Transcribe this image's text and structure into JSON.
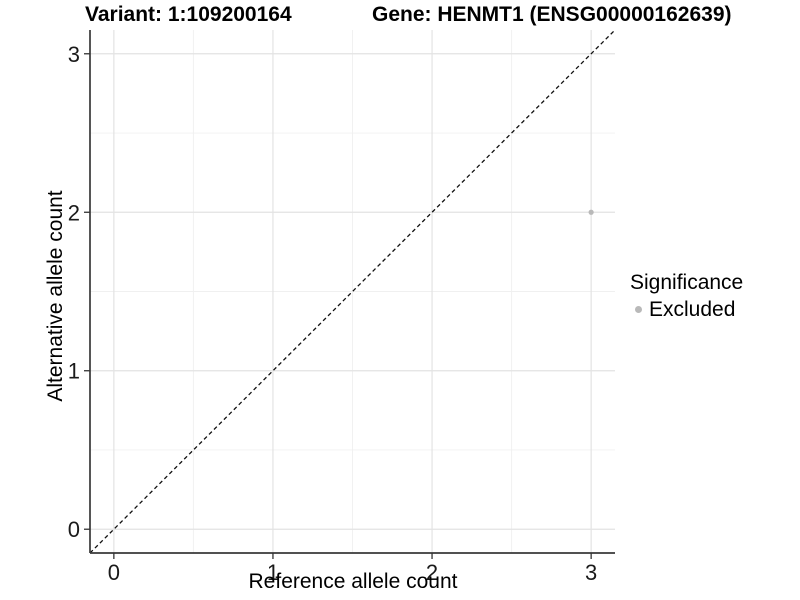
{
  "header": {
    "variant_title": "Variant: 1:109200164",
    "gene_title": "Gene: HENMT1 (ENSG00000162639)"
  },
  "legend": {
    "title": "Significance",
    "items": [
      {
        "label": "Excluded",
        "color": "#b9b9b9"
      }
    ]
  },
  "chart_data": {
    "type": "scatter",
    "title": "Variant: 1:109200164    Gene: HENMT1 (ENSG00000162639)",
    "xlabel": "Reference allele count",
    "ylabel": "Alternative allele count",
    "xlim": [
      -0.15,
      3.15
    ],
    "ylim": [
      -0.15,
      3.15
    ],
    "x_ticks": [
      0,
      1,
      2,
      3
    ],
    "y_ticks": [
      0,
      1,
      2,
      3
    ],
    "x_minor_ticks": [
      0.5,
      1.5,
      2.5
    ],
    "y_minor_ticks": [
      0.5,
      1.5,
      2.5
    ],
    "grid": "major and minor, light grey on white",
    "legend_position": "right",
    "series": [
      {
        "name": "Excluded",
        "color": "#b9b9b9",
        "points": [
          {
            "x": 3,
            "y": 2
          }
        ]
      }
    ],
    "reference_line": {
      "type": "identity y=x",
      "style": "dashed",
      "color": "#111111"
    }
  },
  "colors": {
    "background": "#ffffff",
    "grid_major": "#e3e3e3",
    "grid_minor": "#f0f0f0",
    "axis_line": "#383838",
    "tick_label": "#1a1a1a",
    "point_excluded": "#b9b9b9",
    "reference_line": "#111111"
  }
}
